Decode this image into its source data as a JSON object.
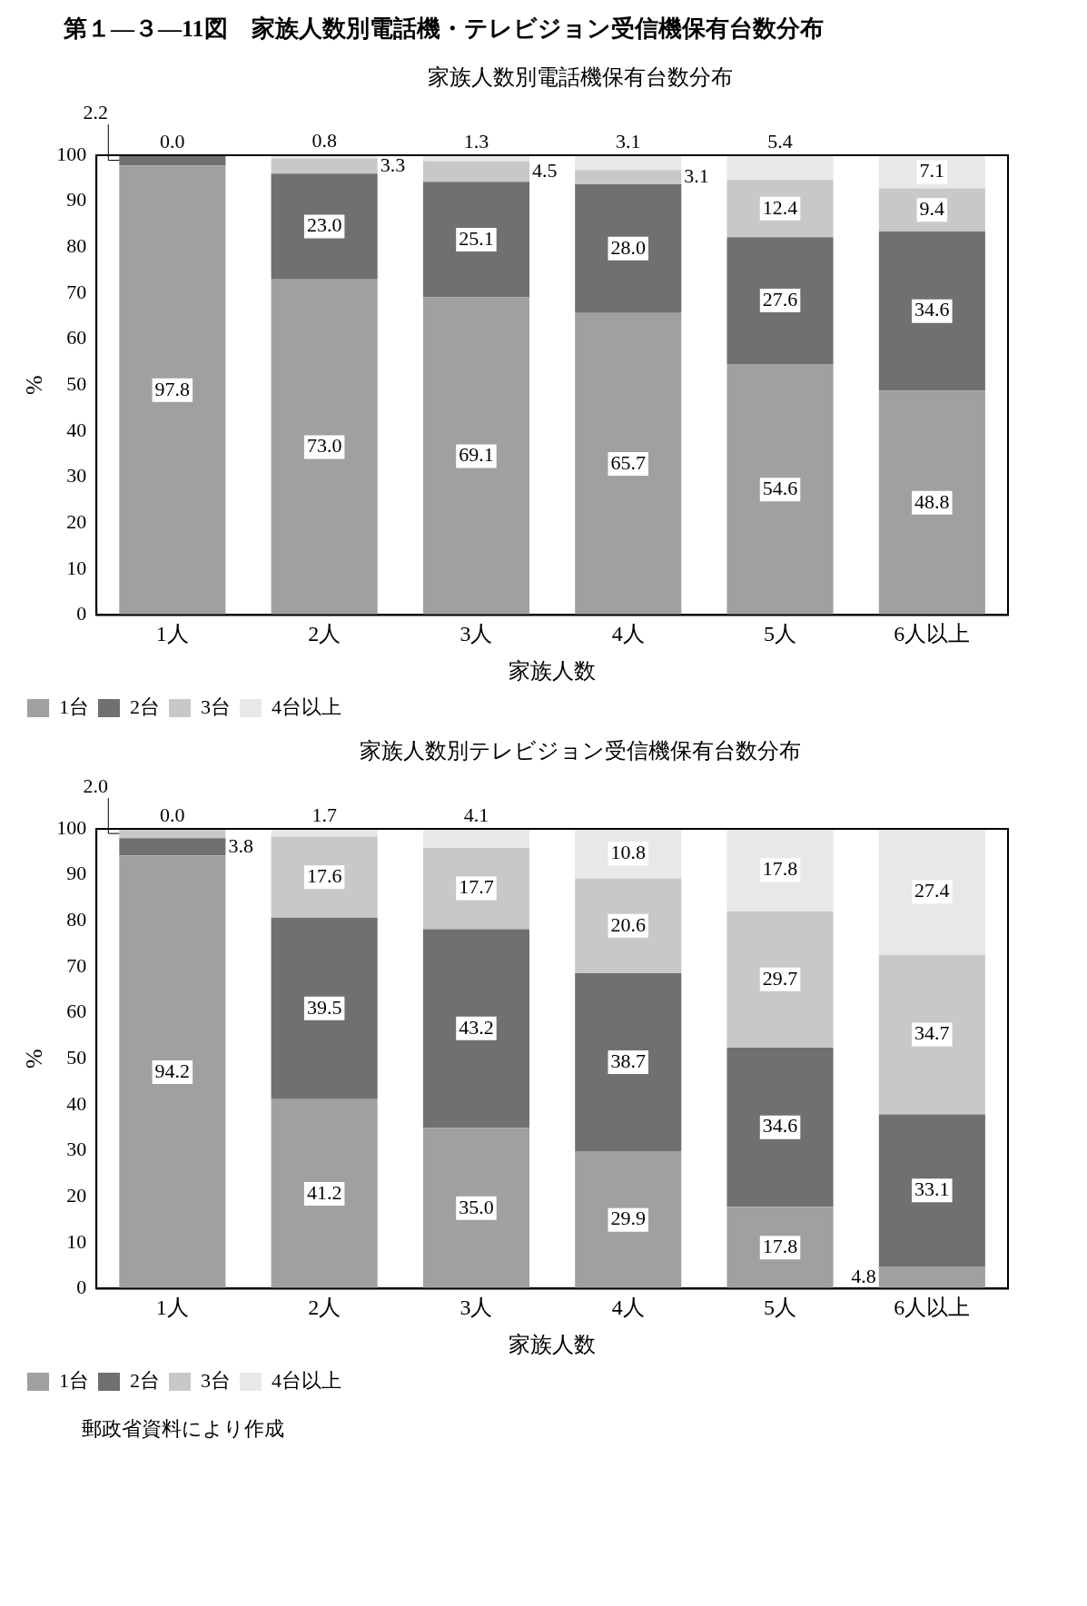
{
  "chart_data": [
    {
      "type": "bar",
      "title": "第１―３―11図　家族人数別電話機・テレビジョン受信機保有台数分布",
      "subtitle": "家族人数別電話機保有台数分布",
      "categories": [
        "1人",
        "2人",
        "3人",
        "4人",
        "5人",
        "6人以上"
      ],
      "stacked": true,
      "ylim": [
        0,
        100
      ],
      "yticks": [
        0,
        10,
        20,
        30,
        40,
        50,
        60,
        70,
        80,
        90,
        100
      ],
      "ylabel": "%",
      "xlabel": "家族人数",
      "legend": "bottom",
      "series": [
        {
          "name": "1台",
          "color": "#a0a0a0",
          "values": [
            97.8,
            73.0,
            69.1,
            65.7,
            54.6,
            48.8
          ],
          "value_labels": [
            "97.8",
            "73.0",
            "69.1",
            "65.7",
            "54.6",
            "48.8"
          ]
        },
        {
          "name": "2台",
          "color": "#707070",
          "values": [
            2.2,
            23.0,
            25.1,
            28.0,
            27.6,
            34.6
          ],
          "value_labels": [
            "2.2",
            "23.0",
            "25.1",
            "28.0",
            "27.6",
            "34.6"
          ]
        },
        {
          "name": "3台",
          "color": "#c8c8c8",
          "values": [
            0,
            3.3,
            4.5,
            3.1,
            12.4,
            9.4
          ],
          "value_labels": [
            null,
            "3.3",
            "4.5",
            "3.1",
            "12.4",
            "9.4"
          ]
        },
        {
          "name": "4台以上",
          "color": "#e8e8e8",
          "values": [
            0.0,
            0.8,
            1.3,
            3.1,
            5.4,
            7.1
          ],
          "value_labels": [
            "0.0",
            "0.8",
            "1.3",
            "3.1",
            "5.4",
            "7.1"
          ]
        }
      ]
    },
    {
      "type": "bar",
      "title": "家族人数別テレビジョン受信機保有台数分布",
      "categories": [
        "1人",
        "2人",
        "3人",
        "4人",
        "5人",
        "6人以上"
      ],
      "stacked": true,
      "ylim": [
        0,
        100
      ],
      "yticks": [
        0,
        10,
        20,
        30,
        40,
        50,
        60,
        70,
        80,
        90,
        100
      ],
      "ylabel": "%",
      "xlabel": "家族人数",
      "legend": "bottom",
      "annotations": [
        "郵政省資料により作成"
      ],
      "series": [
        {
          "name": "1台",
          "color": "#a0a0a0",
          "values": [
            94.2,
            41.2,
            35.0,
            29.9,
            17.8,
            4.8
          ],
          "value_labels": [
            "94.2",
            "41.2",
            "35.0",
            "29.9",
            "17.8",
            "4.8"
          ]
        },
        {
          "name": "2台",
          "color": "#707070",
          "values": [
            3.8,
            39.5,
            43.2,
            38.7,
            34.6,
            33.1
          ],
          "value_labels": [
            "3.8",
            "39.5",
            "43.2",
            "38.7",
            "34.6",
            "33.1"
          ]
        },
        {
          "name": "3台",
          "color": "#c8c8c8",
          "values": [
            2.0,
            17.6,
            17.7,
            20.6,
            29.7,
            34.7
          ],
          "value_labels": [
            "2.0",
            "17.6",
            "17.7",
            "20.6",
            "29.7",
            "34.7"
          ]
        },
        {
          "name": "4台以上",
          "color": "#e8e8e8",
          "values": [
            0.0,
            1.7,
            4.1,
            10.8,
            17.8,
            27.4
          ],
          "value_labels": [
            "0.0",
            "1.7",
            "4.1",
            "10.8",
            "17.8",
            "27.4"
          ]
        }
      ]
    }
  ]
}
